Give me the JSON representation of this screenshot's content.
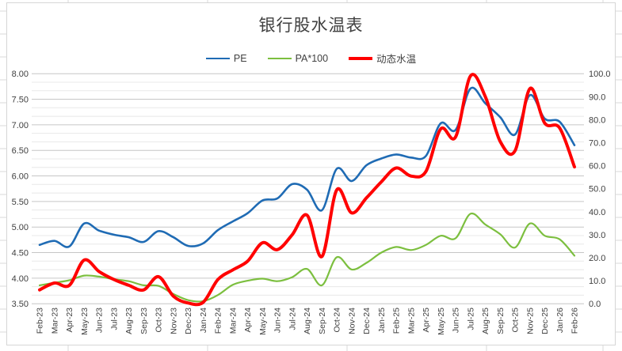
{
  "chart": {
    "title": "银行股水温表",
    "legend": [
      {
        "label": "PE",
        "color": "#1f6bb4",
        "weight": 2.6
      },
      {
        "label": "PA*100",
        "color": "#7cbf3f",
        "weight": 2.2
      },
      {
        "label": "动态水温",
        "color": "#ff0000",
        "weight": 4
      }
    ],
    "left_axis": {
      "ticks": [
        "8.00",
        "7.50",
        "7.00",
        "6.50",
        "6.00",
        "5.50",
        "5.00",
        "4.50",
        "4.00",
        "3.50"
      ],
      "min": 3.5,
      "max": 8.0
    },
    "right_axis": {
      "ticks": [
        "100.0",
        "90.0",
        "80.0",
        "70.0",
        "60.0",
        "50.0",
        "40.0",
        "30.0",
        "20.0",
        "10.0",
        "0.0"
      ],
      "min": 0.0,
      "max": 100.0
    },
    "colors": {
      "major_gridline": "#c6c6c6",
      "minor_gridline": "#e8e8e8",
      "sheet_gridline": "#d9d9d9",
      "text": "#404040",
      "chart_border": "#d6d6d6"
    }
  },
  "chart_data": {
    "type": "line",
    "title": "银行股水温表",
    "categories": [
      "Feb-23",
      "Mar-23",
      "Apr-23",
      "May-23",
      "Jun-23",
      "Jul-23",
      "Aug-23",
      "Sep-23",
      "Oct-23",
      "Nov-23",
      "Dec-23",
      "Jan-24",
      "Feb-24",
      "Mar-24",
      "Apr-24",
      "May-24",
      "Jun-24",
      "Jul-24",
      "Aug-24",
      "Sep-24",
      "Oct-24",
      "Nov-24",
      "Dec-24",
      "Jan-25",
      "Feb-25",
      "Mar-25",
      "Apr-25",
      "May-25",
      "Jun-25",
      "Jul-25",
      "Aug-25",
      "Sep-25",
      "Oct-25",
      "Nov-25",
      "Dec-25",
      "Jan-26",
      "Feb-26"
    ],
    "series": [
      {
        "name": "PE",
        "axis": "left",
        "color": "#1f6bb4",
        "values": [
          4.65,
          4.73,
          4.62,
          5.07,
          4.93,
          4.85,
          4.8,
          4.71,
          4.92,
          4.8,
          4.63,
          4.68,
          4.94,
          5.11,
          5.27,
          5.52,
          5.56,
          5.84,
          5.73,
          5.33,
          6.14,
          5.9,
          6.21,
          6.34,
          6.42,
          6.36,
          6.39,
          7.03,
          6.9,
          7.71,
          7.42,
          7.15,
          6.81,
          7.58,
          7.12,
          7.06,
          6.6
        ]
      },
      {
        "name": "PA*100",
        "axis": "left",
        "color": "#7cbf3f",
        "values": [
          3.86,
          3.91,
          3.96,
          4.05,
          4.03,
          3.98,
          3.94,
          3.86,
          3.85,
          3.69,
          3.57,
          3.55,
          3.67,
          3.87,
          3.95,
          3.99,
          3.94,
          4.02,
          4.18,
          3.86,
          4.41,
          4.17,
          4.3,
          4.5,
          4.61,
          4.55,
          4.65,
          4.83,
          4.78,
          5.26,
          5.05,
          4.86,
          4.6,
          5.07,
          4.83,
          4.76,
          4.44
        ]
      },
      {
        "name": "动态水温",
        "axis": "right",
        "color": "#ff0000",
        "values": [
          6,
          9,
          8,
          19,
          14,
          10.5,
          8,
          6,
          11.8,
          3.3,
          0.3,
          0.6,
          10.5,
          14.7,
          18.5,
          26.5,
          23.5,
          30,
          38.5,
          20.5,
          49.5,
          39.5,
          46,
          53,
          59,
          55.5,
          57.5,
          76,
          72.5,
          99,
          90,
          70.5,
          66.5,
          93.5,
          78.5,
          76.4,
          59.5
        ]
      }
    ],
    "left_ylim": [
      3.5,
      8.0
    ],
    "right_ylim": [
      0.0,
      100.0
    ],
    "grid": "horizontal major + minor thirds",
    "legend_position": "top-center"
  }
}
